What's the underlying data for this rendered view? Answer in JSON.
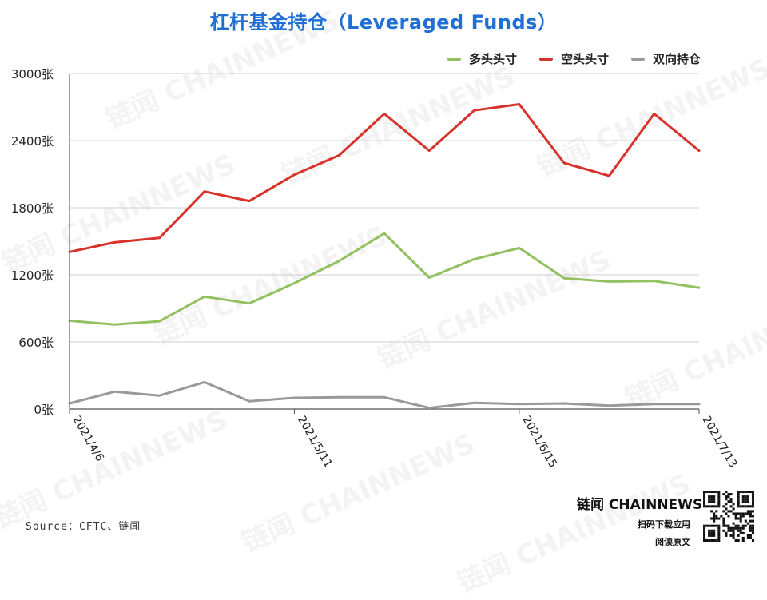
{
  "title": "杠杆基金持仓（Leveraged Funds）",
  "watermark": "链闻 CHAINNEWS",
  "source": "Source：CFTC、链闻",
  "brand": {
    "name": "链闻 CHAINNEWS",
    "line1": "扫码下载应用",
    "line2": "阅读原文"
  },
  "colors": {
    "long": "#93c060",
    "short": "#d8332a",
    "spread": "#999999",
    "title": "#1f6fd6"
  },
  "chart_data": {
    "type": "line",
    "title": "杠杆基金持仓（Leveraged Funds）",
    "ylim": [
      0,
      3000
    ],
    "y_ticks": [
      0,
      600,
      1200,
      1800,
      2400,
      3000
    ],
    "y_unit": "张",
    "x_tick_labels": [
      "2021/4/6",
      "2021/5/11",
      "2021/6/15",
      "2021/7/13"
    ],
    "x_tick_index": [
      0,
      5,
      10,
      14
    ],
    "x": [
      "2021/4/6",
      "2021/4/13",
      "2021/4/20",
      "2021/4/27",
      "2021/5/4",
      "2021/5/11",
      "2021/5/18",
      "2021/5/25",
      "2021/6/1",
      "2021/6/8",
      "2021/6/15",
      "2021/6/22",
      "2021/6/29",
      "2021/7/6",
      "2021/7/13"
    ],
    "grid": true,
    "legend_position": "top-right",
    "series": [
      {
        "name": "多头头寸",
        "color": "#93c060",
        "values": [
          790,
          755,
          785,
          1005,
          945,
          1125,
          1325,
          1570,
          1175,
          1340,
          1440,
          1170,
          1140,
          1145,
          1085
        ]
      },
      {
        "name": "空头头寸",
        "color": "#d8332a",
        "values": [
          1405,
          1490,
          1530,
          1945,
          1860,
          2095,
          2270,
          2640,
          2310,
          2670,
          2725,
          2200,
          2085,
          2640,
          2310
        ]
      },
      {
        "name": "双向持仓",
        "color": "#999999",
        "values": [
          50,
          155,
          120,
          240,
          70,
          100,
          105,
          105,
          10,
          55,
          45,
          50,
          30,
          45,
          45
        ]
      }
    ]
  }
}
